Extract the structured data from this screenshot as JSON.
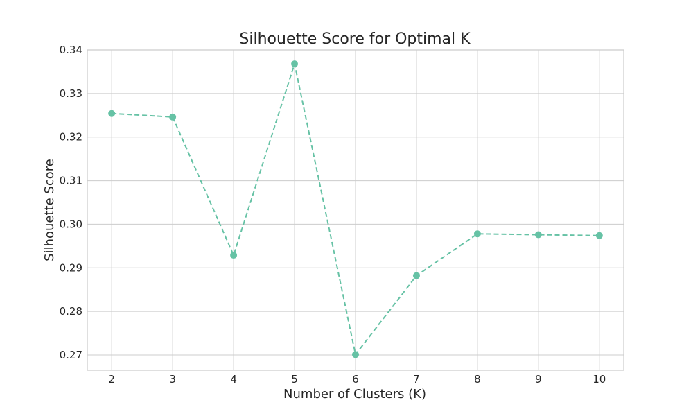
{
  "chart_data": {
    "type": "line",
    "title": "Silhouette Score for Optimal K",
    "xlabel": "Number of Clusters (K)",
    "ylabel": "Silhouette Score",
    "x": [
      2,
      3,
      4,
      5,
      6,
      7,
      8,
      9,
      10
    ],
    "series": [
      {
        "values": [
          0.3254,
          0.3246,
          0.2929,
          0.3368,
          0.2701,
          0.2882,
          0.2978,
          0.2976,
          0.2974
        ],
        "color": "#66c2a5",
        "line_style": "dashed",
        "marker": "circle"
      }
    ],
    "xlim": [
      1.6,
      10.4
    ],
    "ylim": [
      0.2665,
      0.34
    ],
    "xticks": [
      2,
      3,
      4,
      5,
      6,
      7,
      8,
      9,
      10
    ],
    "yticks": [
      0.27,
      0.28,
      0.29,
      0.3,
      0.31,
      0.32,
      0.33,
      0.34
    ],
    "ytick_labels": [
      "0.27",
      "0.28",
      "0.29",
      "0.30",
      "0.31",
      "0.32",
      "0.33",
      "0.34"
    ],
    "grid": true
  }
}
